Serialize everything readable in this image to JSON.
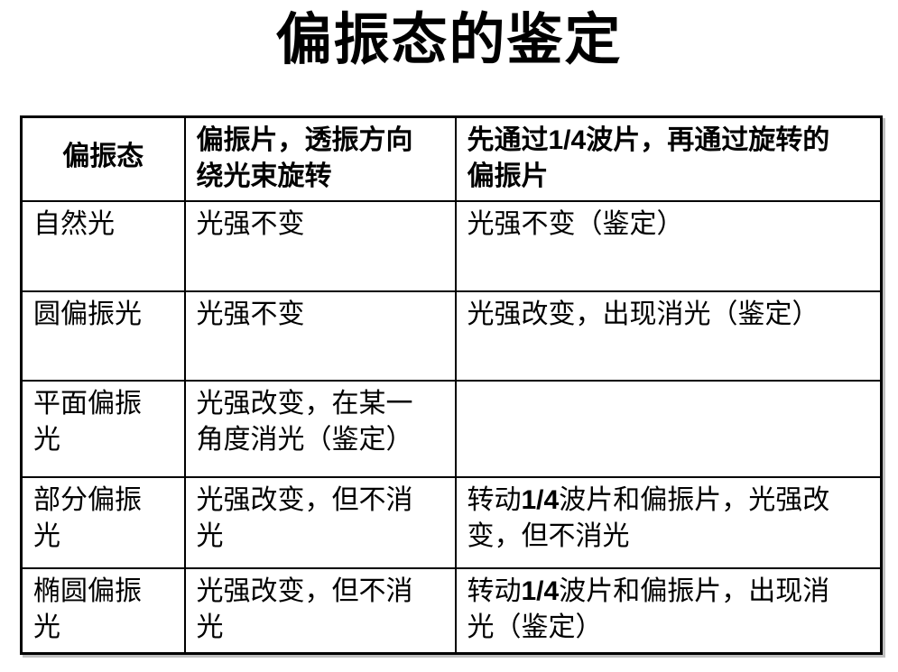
{
  "page": {
    "title": "偏振态的鉴定",
    "background_color": "#ffffff",
    "text_color": "#000000",
    "border_color": "#000000"
  },
  "table": {
    "header": [
      "偏振态",
      "偏振片，透振方向\n绕光束旋转",
      "先通过1/4波片，再通过旋转的\n偏振片"
    ],
    "rows": [
      {
        "cells": [
          "自然光",
          "光强不变",
          "光强不变（鉴定）"
        ]
      },
      {
        "cells": [
          "圆偏振光",
          "光强不变",
          "光强改变，出现消光（鉴定）"
        ]
      },
      {
        "cells": [
          "平面偏振\n光",
          "光强改变，在某一\n角度消光（鉴定）",
          ""
        ]
      },
      {
        "cells": [
          "部分偏振\n光",
          "光强改变，但不消\n光",
          "转动1/4波片和偏振片，光强改\n变，但不消光"
        ]
      },
      {
        "cells": [
          "椭圆偏振\n光",
          "光强改变，但不消\n光",
          "转动1/4波片和偏振片，出现消\n光（鉴定）"
        ]
      }
    ]
  }
}
